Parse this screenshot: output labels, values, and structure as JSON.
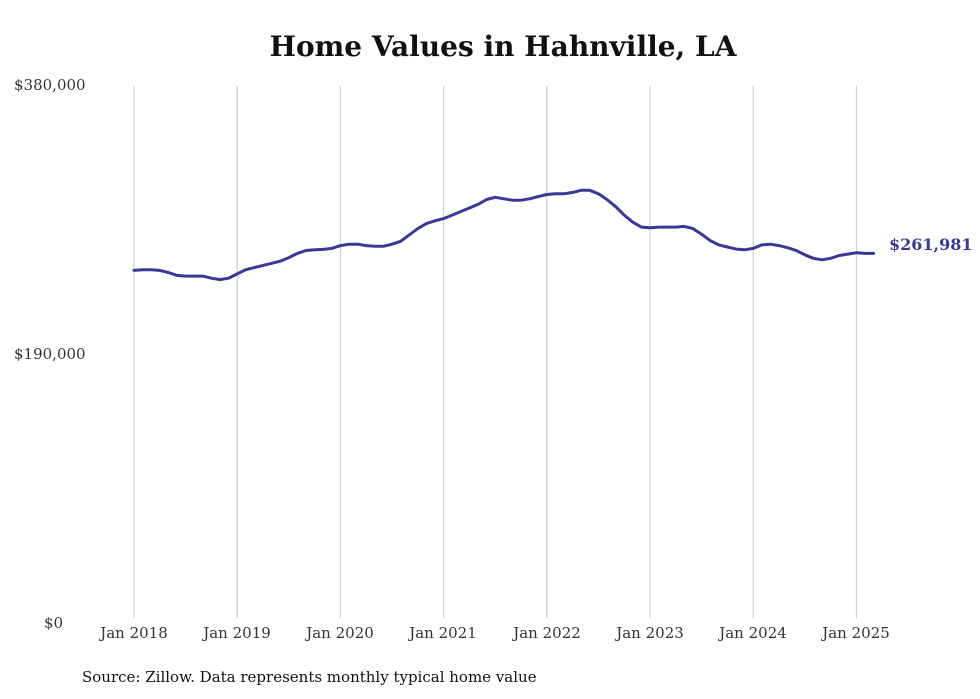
{
  "colors": {
    "line": "#3c3796",
    "grid": "#c8c8c8",
    "text": "#333333"
  },
  "chart_data": {
    "type": "line",
    "title": "Home Values in Hahnville, LA",
    "source": "Source: Zillow. Data represents monthly typical home value",
    "ylim": [
      0,
      380000
    ],
    "y_ticks": [
      "$0",
      "$190,000",
      "$380,000"
    ],
    "x_ticks": [
      "Jan 2018",
      "Jan 2019",
      "Jan 2020",
      "Jan 2021",
      "Jan 2022",
      "Jan 2023",
      "Jan 2024",
      "Jan 2025"
    ],
    "grid": "vertical",
    "end_label": "$261,981",
    "series": [
      {
        "x": [
          "2018-01",
          "2018-02",
          "2018-03",
          "2018-04",
          "2018-05",
          "2018-06",
          "2018-07",
          "2018-08",
          "2018-09",
          "2018-10",
          "2018-11",
          "2018-12",
          "2019-01",
          "2019-02",
          "2019-03",
          "2019-04",
          "2019-05",
          "2019-06",
          "2019-07",
          "2019-08",
          "2019-09",
          "2019-10",
          "2019-11",
          "2019-12",
          "2020-01",
          "2020-02",
          "2020-03",
          "2020-04",
          "2020-05",
          "2020-06",
          "2020-07",
          "2020-08",
          "2020-09",
          "2020-10",
          "2020-11",
          "2020-12",
          "2021-01",
          "2021-02",
          "2021-03",
          "2021-04",
          "2021-05",
          "2021-06",
          "2021-07",
          "2021-08",
          "2021-09",
          "2021-10",
          "2021-11",
          "2021-12",
          "2022-01",
          "2022-02",
          "2022-03",
          "2022-04",
          "2022-05",
          "2022-06",
          "2022-07",
          "2022-08",
          "2022-09",
          "2022-10",
          "2022-11",
          "2022-12",
          "2023-01",
          "2023-02",
          "2023-03",
          "2023-04",
          "2023-05",
          "2023-06",
          "2023-07",
          "2023-08",
          "2023-09",
          "2023-10",
          "2023-11",
          "2023-12",
          "2024-01",
          "2024-02",
          "2024-03",
          "2024-04",
          "2024-05",
          "2024-06",
          "2024-07",
          "2024-08",
          "2024-09",
          "2024-10",
          "2024-11",
          "2024-12",
          "2025-01",
          "2025-02",
          "2025-03"
        ],
        "values": [
          250000,
          250500,
          250500,
          250000,
          248500,
          246500,
          246000,
          246000,
          246000,
          244500,
          243500,
          244500,
          247500,
          250500,
          252000,
          253500,
          255000,
          256500,
          259000,
          262000,
          264000,
          264500,
          264800,
          265500,
          267500,
          268500,
          268500,
          267500,
          267000,
          267000,
          268500,
          270500,
          275000,
          279500,
          283000,
          285000,
          286500,
          289000,
          291500,
          294000,
          296500,
          300000,
          301500,
          300500,
          299500,
          299500,
          300500,
          302000,
          303500,
          304000,
          304000,
          305000,
          306500,
          306500,
          304000,
          300000,
          295000,
          289000,
          284000,
          280500,
          280000,
          280500,
          280500,
          280500,
          281000,
          279500,
          275500,
          271000,
          268000,
          266500,
          265000,
          264500,
          265500,
          268000,
          268500,
          267500,
          266000,
          264000,
          261000,
          258500,
          257500,
          258500,
          260500,
          261500,
          262500,
          262000,
          261981
        ]
      }
    ]
  }
}
